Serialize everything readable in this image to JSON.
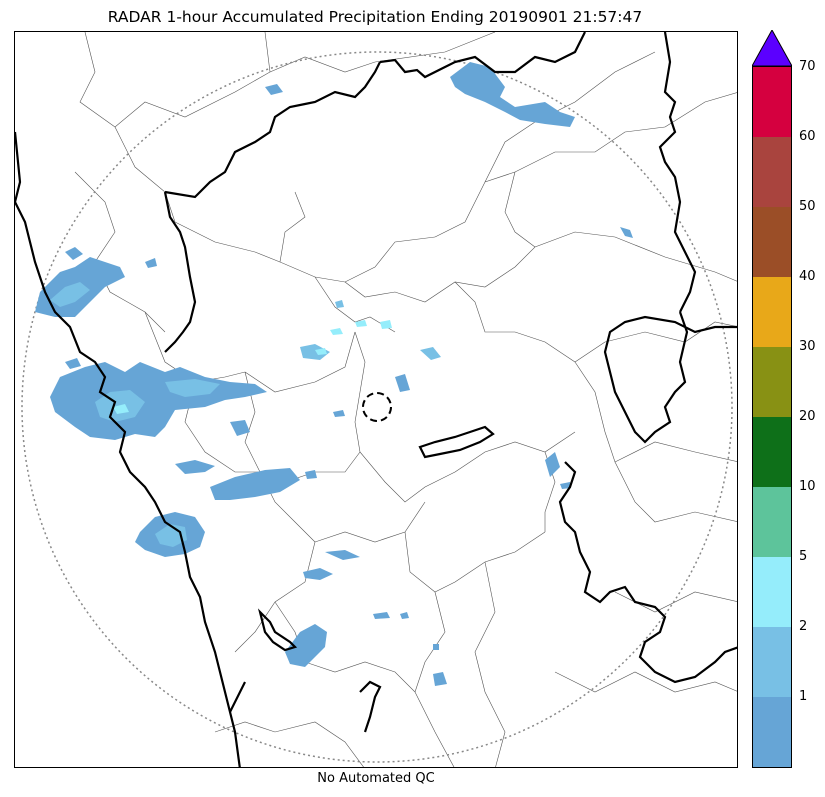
{
  "title": "RADAR 1-hour Accumulated Precipitation Ending 20190901 21:57:47",
  "footer": "No Automated QC",
  "colorbar": {
    "extend": "max",
    "overflow_color": "#5b00ff",
    "tick_labels": [
      "1",
      "2",
      "5",
      "10",
      "20",
      "30",
      "40",
      "50",
      "60",
      "70"
    ],
    "colors": [
      "#66a5d6",
      "#78c0e5",
      "#95edfb",
      "#5dc49b",
      "#0e7019",
      "#889114",
      "#e8a819",
      "#9b4e27",
      "#a9443e",
      "#d5003f"
    ]
  },
  "map": {
    "range_ring": "dotted",
    "radar_site_marker": "dashed-circle",
    "state_border_color": "#000000",
    "district_border_color": "#555555",
    "precip_colors": {
      "light": "#66a5d6",
      "medium": "#78c0e5",
      "heavy": "#95edfb",
      "peak": "#5dc49b"
    }
  }
}
